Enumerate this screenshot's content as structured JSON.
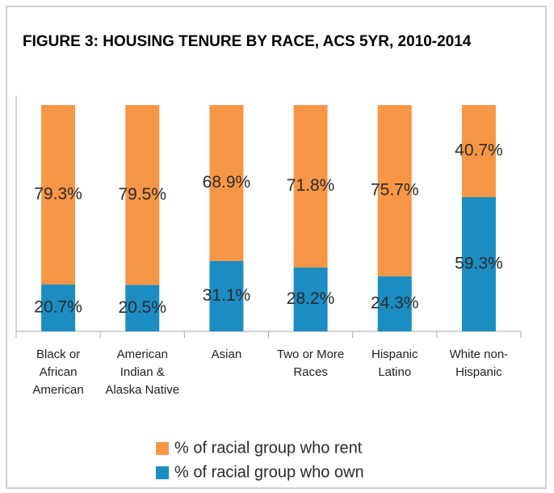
{
  "chart_data": {
    "type": "stacked_bar",
    "title": "FIGURE 3: HOUSING TENURE BY RACE, ACS 5YR, 2010-2014",
    "categories": [
      "Black or African American",
      "American Indian & Alaska Native",
      "Asian",
      "Two or More Races",
      "Hispanic Latino",
      "White non-Hispanic"
    ],
    "ylim": [
      0,
      100
    ],
    "legend": "bottom",
    "series": [
      {
        "name": "% of racial group who rent",
        "color": "#f79646",
        "values": [
          79.3,
          79.5,
          68.9,
          71.8,
          75.7,
          40.7
        ],
        "value_labels": [
          "79.3%",
          "79.5%",
          "68.9%",
          "71.8%",
          "75.7%",
          "40.7%"
        ]
      },
      {
        "name": "% of racial group who own",
        "color": "#1b8dc2",
        "values": [
          20.7,
          20.5,
          31.1,
          28.2,
          24.3,
          59.3
        ],
        "value_labels": [
          "20.7%",
          "20.5%",
          "31.1%",
          "28.2%",
          "24.3%",
          "59.3%"
        ]
      }
    ]
  }
}
